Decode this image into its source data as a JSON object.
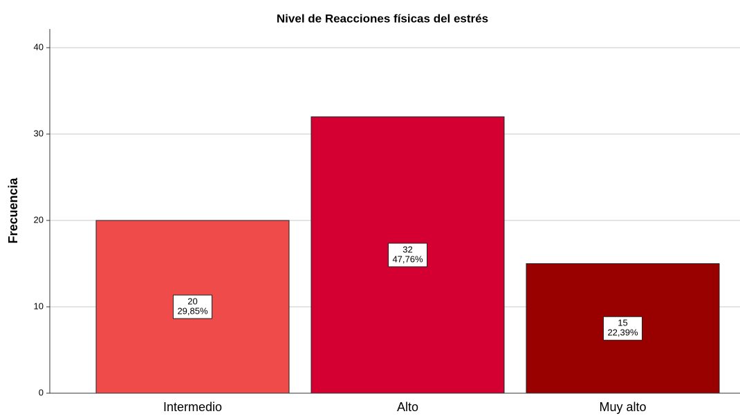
{
  "chart_data": {
    "type": "bar",
    "title": "Nivel de Reacciones físicas del estrés",
    "y_label": "Frecuencia",
    "categories": [
      "Intermedio",
      "Alto",
      "Muy alto"
    ],
    "values": [
      20,
      32,
      15
    ],
    "percent_values": [
      29.85,
      47.76,
      22.39
    ],
    "percent_labels": [
      "29,85%",
      "47,76%",
      "22,39%"
    ],
    "colors": [
      "#ef4b4b",
      "#d50032",
      "#990000"
    ],
    "ylim": [
      0,
      42
    ],
    "yticks": [
      0,
      10,
      20,
      30,
      40
    ],
    "grid": true
  }
}
